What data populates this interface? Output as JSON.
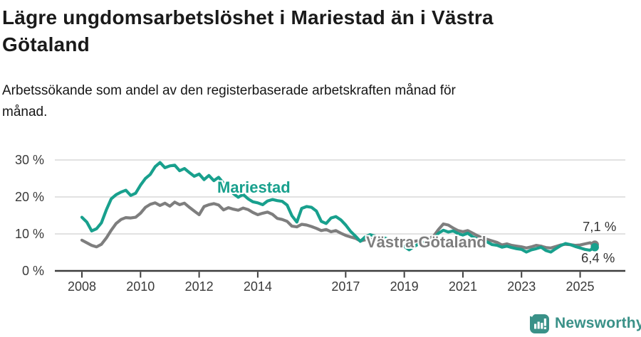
{
  "header": {
    "title_lines": [
      "Lägre ungdomsarbetslöshet i Mariestad än i Västra",
      "Götaland"
    ],
    "subtitle_lines": [
      "Arbetssökande som andel av den registerbaserade arbetskraften månad för",
      "månad."
    ]
  },
  "brand": {
    "name": "Newsworthy",
    "color": "#3a9188"
  },
  "chart_data": {
    "type": "line",
    "title": "Lägre ungdomsarbetslöshet i Mariestad än i Västra Götaland",
    "subtitle": "Arbetssökande som andel av den registerbaserade arbetskraften månad för månad.",
    "grid": "horizontal-only",
    "legend_position": "inline-labels",
    "ylim": [
      0,
      30
    ],
    "y_ticks": [
      {
        "value": 0,
        "label": "0 %"
      },
      {
        "value": 10,
        "label": "10 %"
      },
      {
        "value": 20,
        "label": "20 %"
      },
      {
        "value": 30,
        "label": "30 %"
      }
    ],
    "x_ticks": [
      {
        "year": 2008,
        "label": "2008"
      },
      {
        "year": 2010,
        "label": "2010"
      },
      {
        "year": 2012,
        "label": "2012"
      },
      {
        "year": 2014,
        "label": "2014"
      },
      {
        "year": 2017,
        "label": "2017"
      },
      {
        "year": 2019,
        "label": "2019"
      },
      {
        "year": 2021,
        "label": "2021"
      },
      {
        "year": 2023,
        "label": "2023"
      },
      {
        "year": 2025,
        "label": "2025"
      }
    ],
    "x_start_year": 2008.0,
    "x_step_years": 0.166667,
    "series": [
      {
        "name": "Mariestad",
        "color": "#18a08d",
        "end_label": "6,4 %",
        "end_value": 6.4,
        "values": [
          14.5,
          13.2,
          10.8,
          11.4,
          13.0,
          16.5,
          19.5,
          20.6,
          21.3,
          21.8,
          20.4,
          21.0,
          23.2,
          25.0,
          26.1,
          28.2,
          29.3,
          27.9,
          28.4,
          28.6,
          27.1,
          27.7,
          26.6,
          25.6,
          26.2,
          24.7,
          25.8,
          24.4,
          25.3,
          23.7,
          23.0,
          20.9,
          19.9,
          20.7,
          19.5,
          18.7,
          18.4,
          17.9,
          18.9,
          19.3,
          19.0,
          18.8,
          17.8,
          14.9,
          13.2,
          16.9,
          17.4,
          17.2,
          16.2,
          13.4,
          12.8,
          14.3,
          14.7,
          13.8,
          12.4,
          10.7,
          9.4,
          8.0,
          9.2,
          9.8,
          9.4,
          8.6,
          8.9,
          8.4,
          7.8,
          7.2,
          6.6,
          5.7,
          6.6,
          7.3,
          7.7,
          7.9,
          8.6,
          10.2,
          11.0,
          10.5,
          10.8,
          10.1,
          9.7,
          10.2,
          9.2,
          8.6,
          8.1,
          7.8,
          7.1,
          6.9,
          6.4,
          6.7,
          6.3,
          6.0,
          5.8,
          5.1,
          5.7,
          6.0,
          6.4,
          5.5,
          5.1,
          6.0,
          6.8,
          7.4,
          7.1,
          6.6,
          6.2,
          5.8,
          5.6,
          6.4
        ]
      },
      {
        "name": "Västra Götaland",
        "color": "#7e7e7e",
        "end_label": "7,1 %",
        "end_value": 7.1,
        "values": [
          8.3,
          7.6,
          6.9,
          6.5,
          7.2,
          8.9,
          11.0,
          12.8,
          13.9,
          14.4,
          14.3,
          14.5,
          15.6,
          17.2,
          18.0,
          18.4,
          17.7,
          18.3,
          17.5,
          18.6,
          17.9,
          18.3,
          17.2,
          16.2,
          15.2,
          17.4,
          17.9,
          18.2,
          17.8,
          16.5,
          17.1,
          16.7,
          16.4,
          17.0,
          16.6,
          15.8,
          15.2,
          15.6,
          15.9,
          15.3,
          14.2,
          13.9,
          13.4,
          12.1,
          11.9,
          12.6,
          12.4,
          12.0,
          11.5,
          10.9,
          11.2,
          10.6,
          10.9,
          10.2,
          9.6,
          9.2,
          8.8,
          8.1,
          8.4,
          8.6,
          8.3,
          8.1,
          8.4,
          8.2,
          7.9,
          8.0,
          7.9,
          7.7,
          8.0,
          8.2,
          8.4,
          8.7,
          9.4,
          11.2,
          12.7,
          12.4,
          11.6,
          10.9,
          10.6,
          10.9,
          10.2,
          9.5,
          8.9,
          8.5,
          8.1,
          7.7,
          7.0,
          7.3,
          6.9,
          6.7,
          6.5,
          6.2,
          6.5,
          6.9,
          6.7,
          6.3,
          6.2,
          6.6,
          7.0,
          7.2,
          7.1,
          6.9,
          7.0,
          7.3,
          7.6,
          7.1
        ]
      }
    ],
    "colors": {
      "axis": "#3d3d3d",
      "gridline": "#d9d9d9",
      "tick_text": "#3a3a3a"
    }
  }
}
